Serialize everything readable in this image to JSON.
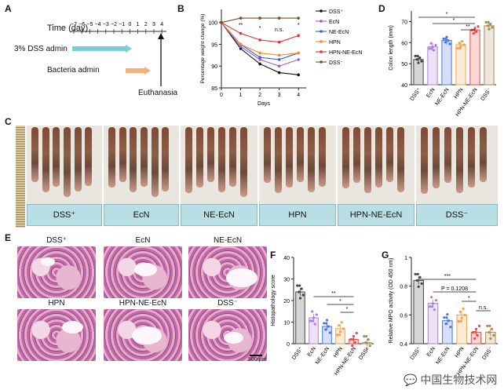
{
  "panels": {
    "A": {
      "label": "A",
      "time_title": "Time (day)",
      "ticks": [
        "−7",
        "−6",
        "−5",
        "−4",
        "−3",
        "−2",
        "−1",
        "0",
        "1",
        "2",
        "3",
        "4"
      ],
      "dss_label": "3% DSS admin",
      "bact_label": "Bacteria admin",
      "euth_label": "Euthanasia",
      "dss_color": "#7ecbd6",
      "bact_color": "#f3b27a"
    },
    "B": {
      "label": "B",
      "sig": [
        "**",
        "*",
        "n.s.",
        "*"
      ]
    },
    "C": {
      "label": "C",
      "groups": [
        "DSS⁺",
        "EcN",
        "NE-EcN",
        "HPN",
        "HPN-NE-EcN",
        "DSS⁻"
      ]
    },
    "D": {
      "label": "D",
      "sig": [
        "*",
        "*",
        "**"
      ]
    },
    "E": {
      "label": "E",
      "titles": [
        "DSS⁺",
        "EcN",
        "NE-EcN",
        "HPN",
        "HPN-NE-EcN",
        "DSS⁻"
      ],
      "scalebar": "500 μm"
    },
    "F": {
      "label": "F",
      "sig": [
        "**",
        "*",
        "*"
      ]
    },
    "G": {
      "label": "G",
      "sig": [
        "***",
        "P = 0.1208",
        "*",
        "n.s."
      ]
    }
  },
  "watermark": "中国生物技术网",
  "chart_data": [
    {
      "id": "B",
      "type": "line",
      "xlabel": "Days",
      "ylabel": "Percentage weight change (%)",
      "x": [
        0,
        1,
        2,
        3,
        4
      ],
      "xlim": [
        0,
        4.4
      ],
      "ylim": [
        85,
        103
      ],
      "yticks": [
        85,
        90,
        95,
        100
      ],
      "legend_position": "right",
      "series": [
        {
          "name": "DSS⁺",
          "color": "#111111",
          "values": [
            100,
            94,
            90.5,
            88.5,
            88
          ]
        },
        {
          "name": "EcN",
          "color": "#9a5bd6",
          "values": [
            100,
            94.5,
            91.5,
            90,
            91.5
          ]
        },
        {
          "name": "NE-EcN",
          "color": "#3b5bdb",
          "values": [
            100,
            95,
            92,
            91.5,
            93
          ]
        },
        {
          "name": "HPN",
          "color": "#f08c2a",
          "values": [
            100,
            95,
            93,
            92.5,
            93
          ]
        },
        {
          "name": "HPN-NE-EcN",
          "color": "#e03131",
          "values": [
            100,
            97.5,
            96,
            95.5,
            97
          ]
        },
        {
          "name": "DSS⁻",
          "color": "#7a4a2a",
          "values": [
            100,
            101,
            101,
            101,
            101
          ]
        }
      ]
    },
    {
      "id": "D",
      "type": "bar",
      "ylabel": "Colon length (mm)",
      "categories": [
        "DSS⁺",
        "EcN",
        "NE-EcN",
        "HPN",
        "HPN-NE-EcN",
        "DSS⁻"
      ],
      "values": [
        52,
        58,
        61,
        59,
        66,
        68
      ],
      "colors": [
        "#444444",
        "#b07be0",
        "#4a73e8",
        "#f5a04a",
        "#e84a4a",
        "#a98b5a"
      ],
      "ylim": [
        40,
        75
      ],
      "yticks": [
        40,
        50,
        60,
        70
      ]
    },
    {
      "id": "F",
      "type": "bar",
      "ylabel": "Histopathology score",
      "categories": [
        "DSS⁺",
        "EcN",
        "NE-EcN",
        "HPN",
        "HPN-NE-EcN",
        "DSS⁻"
      ],
      "values": [
        24,
        12,
        8,
        7,
        2,
        0.5
      ],
      "colors": [
        "#444444",
        "#b07be0",
        "#4a73e8",
        "#f5a04a",
        "#e84a4a",
        "#a98b5a"
      ],
      "ylim": [
        0,
        40
      ],
      "yticks": [
        0,
        10,
        20,
        30,
        40
      ]
    },
    {
      "id": "G",
      "type": "bar",
      "ylabel": "Relative MPO activity (OD 450 nm)",
      "categories": [
        "DSS⁺",
        "EcN",
        "NE-EcN",
        "HPN",
        "HPN-NE-EcN",
        "DSS⁻"
      ],
      "values": [
        0.84,
        0.68,
        0.56,
        0.6,
        0.48,
        0.48
      ],
      "colors": [
        "#444444",
        "#b07be0",
        "#4a73e8",
        "#f5a04a",
        "#e84a4a",
        "#a98b5a"
      ],
      "ylim": [
        0.4,
        1.0
      ],
      "yticks": [
        0.4,
        0.6,
        0.8,
        1.0
      ]
    }
  ]
}
